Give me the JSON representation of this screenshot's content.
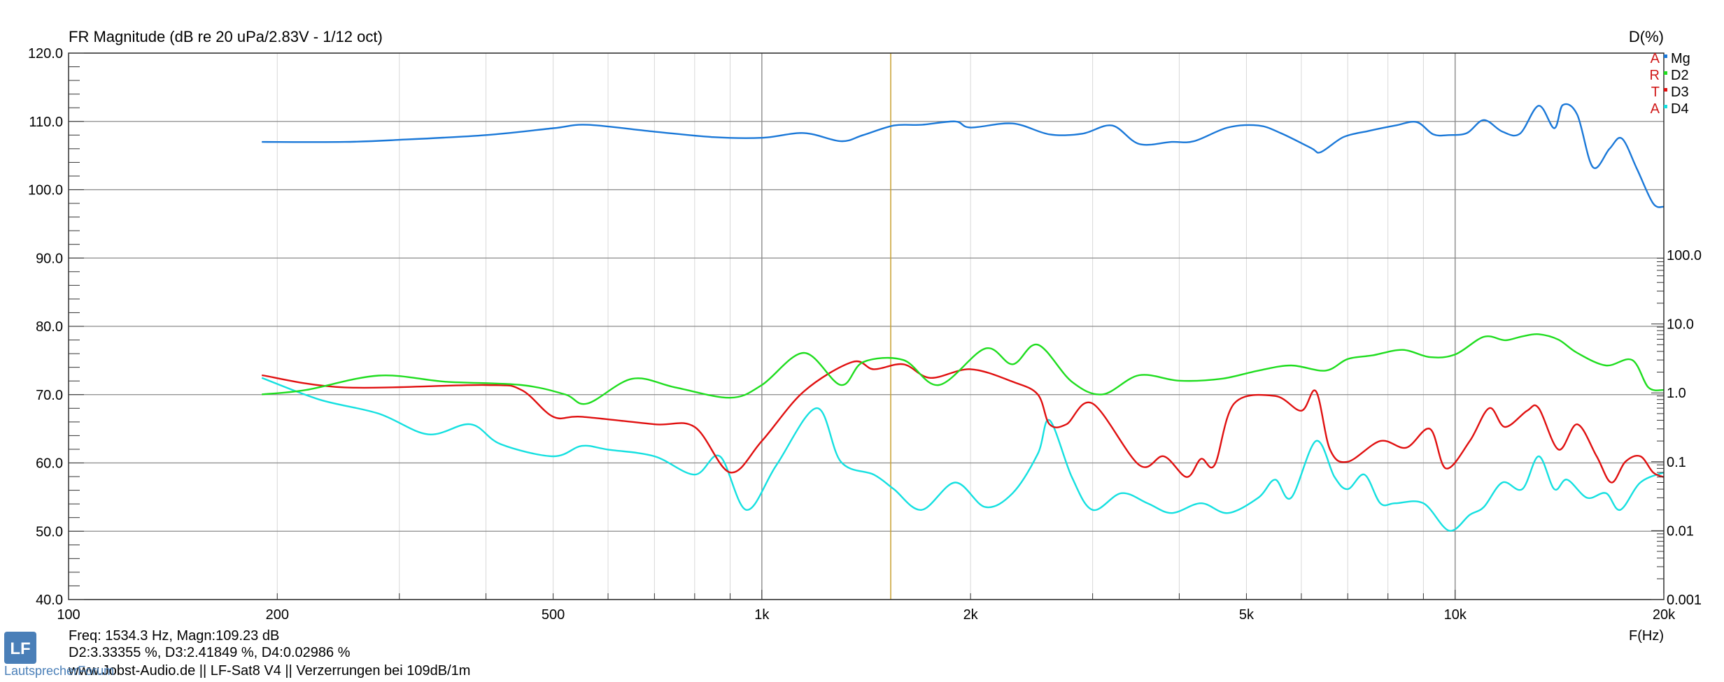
{
  "chart_data": {
    "type": "line",
    "title": "FR Magnitude (dB re 20 uPa/2.83V - 1/12 oct)",
    "right_axis_title": "D(%)",
    "xlabel": "F(Hz)",
    "x_scale": "log",
    "xlim": [
      100,
      20000
    ],
    "x_ticks": [
      {
        "value": 100,
        "label": "100"
      },
      {
        "value": 200,
        "label": "200"
      },
      {
        "value": 500,
        "label": "500"
      },
      {
        "value": 1000,
        "label": "1k"
      },
      {
        "value": 2000,
        "label": "2k"
      },
      {
        "value": 5000,
        "label": "5k"
      },
      {
        "value": 10000,
        "label": "10k"
      },
      {
        "value": 20000,
        "label": "20k"
      }
    ],
    "ylim": [
      40,
      120
    ],
    "y_ticks": [
      "40.0",
      "50.0",
      "60.0",
      "70.0",
      "80.0",
      "90.0",
      "100.0",
      "110.0",
      "120.0"
    ],
    "y2_scale": "log",
    "y2lim": [
      0.001,
      100
    ],
    "y2_ticks": [
      {
        "value": 100,
        "label": "100.0"
      },
      {
        "value": 10,
        "label": "10.0"
      },
      {
        "value": 1,
        "label": "1.0"
      },
      {
        "value": 0.1,
        "label": "0.1"
      },
      {
        "value": 0.01,
        "label": "0.01"
      },
      {
        "value": 0.001,
        "label": "0.001"
      }
    ],
    "grid": true,
    "legend_placement": "top-right",
    "arta_letters": [
      "A",
      "R",
      "T",
      "A"
    ],
    "cursor_freq": 1534.3,
    "series": [
      {
        "name": "Mg",
        "axis": "left",
        "color": "#1a78d8",
        "x": [
          190,
          250,
          300,
          400,
          500,
          560,
          700,
          850,
          1000,
          1150,
          1300,
          1400,
          1550,
          1700,
          1900,
          2000,
          2300,
          2600,
          2900,
          3200,
          3500,
          3900,
          4200,
          4700,
          5200,
          5600,
          6200,
          6400,
          6900,
          7500,
          8200,
          8800,
          9300,
          9800,
          10400,
          11000,
          11700,
          12400,
          13200,
          13900,
          14300,
          15000,
          15800,
          16700,
          17400,
          18300,
          19300,
          20000
        ],
        "y": [
          107,
          107,
          107.3,
          108,
          109,
          109.5,
          108.5,
          107.7,
          107.6,
          108.3,
          107.1,
          108,
          109.4,
          109.5,
          110,
          109.1,
          109.7,
          108.1,
          108.2,
          109.4,
          106.7,
          107,
          107.1,
          109.1,
          109.4,
          108.3,
          106.1,
          105.5,
          107.7,
          108.6,
          109.4,
          109.9,
          108.1,
          108,
          108.3,
          110.2,
          108.5,
          108.2,
          112.3,
          109,
          112.4,
          111,
          103.3,
          106,
          107.5,
          103,
          98,
          97.5
        ]
      },
      {
        "name": "D2",
        "axis": "right",
        "color": "#1fdd1f",
        "x": [
          190,
          220,
          280,
          350,
          450,
          520,
          560,
          650,
          750,
          900,
          1000,
          1150,
          1300,
          1400,
          1600,
          1800,
          2100,
          2300,
          2500,
          2800,
          3100,
          3500,
          4000,
          4600,
          5200,
          5800,
          6500,
          7000,
          7600,
          8400,
          9200,
          10000,
          11000,
          11800,
          12500,
          13200,
          14100,
          15000,
          16500,
          18000,
          19000,
          20000
        ],
        "y": [
          0.95,
          1.1,
          1.78,
          1.45,
          1.3,
          0.95,
          0.7,
          1.6,
          1.2,
          0.85,
          1.3,
          3.8,
          1.3,
          2.8,
          3.0,
          1.3,
          4.4,
          2.6,
          5.0,
          1.45,
          0.95,
          1.8,
          1.5,
          1.6,
          2.1,
          2.5,
          2.1,
          3.1,
          3.5,
          4.2,
          3.3,
          3.6,
          6.5,
          5.8,
          6.6,
          7.1,
          5.9,
          3.8,
          2.5,
          3.0,
          1.2,
          1.1
        ]
      },
      {
        "name": "D3",
        "axis": "right",
        "color": "#e01010",
        "x": [
          190,
          250,
          400,
          450,
          500,
          550,
          700,
          800,
          900,
          1000,
          1150,
          1350,
          1450,
          1600,
          1750,
          2000,
          2300,
          2500,
          2600,
          2750,
          3000,
          3500,
          3800,
          4100,
          4300,
          4500,
          4800,
          5500,
          6000,
          6300,
          6600,
          7000,
          7800,
          8500,
          9200,
          9700,
          10500,
          11200,
          11800,
          12700,
          13200,
          14100,
          15000,
          16000,
          16800,
          17600,
          18500,
          19300,
          20000
        ],
        "y": [
          1.8,
          1.2,
          1.3,
          1.1,
          0.45,
          0.45,
          0.35,
          0.32,
          0.07,
          0.2,
          1.05,
          2.8,
          2.2,
          2.6,
          1.65,
          2.2,
          1.45,
          0.95,
          0.35,
          0.35,
          0.7,
          0.09,
          0.12,
          0.06,
          0.11,
          0.09,
          0.7,
          0.9,
          0.55,
          1.05,
          0.15,
          0.1,
          0.2,
          0.16,
          0.3,
          0.08,
          0.2,
          0.6,
          0.32,
          0.55,
          0.6,
          0.15,
          0.35,
          0.12,
          0.05,
          0.1,
          0.12,
          0.07,
          0.06
        ]
      },
      {
        "name": "D4",
        "axis": "right",
        "color": "#15e0e0",
        "x": [
          190,
          230,
          280,
          330,
          380,
          420,
          500,
          550,
          600,
          700,
          800,
          870,
          950,
          1050,
          1200,
          1300,
          1450,
          1550,
          1700,
          1900,
          2100,
          2300,
          2500,
          2600,
          2800,
          3000,
          3300,
          3600,
          3900,
          4300,
          4700,
          5200,
          5500,
          5800,
          6300,
          6700,
          7000,
          7400,
          7800,
          8200,
          9000,
          9800,
          10500,
          11000,
          11700,
          12500,
          13200,
          13900,
          14500,
          15500,
          16500,
          17300,
          18500,
          20000
        ],
        "y": [
          1.65,
          0.8,
          0.5,
          0.25,
          0.35,
          0.18,
          0.12,
          0.17,
          0.15,
          0.12,
          0.065,
          0.12,
          0.02,
          0.09,
          0.6,
          0.1,
          0.065,
          0.04,
          0.02,
          0.05,
          0.022,
          0.035,
          0.13,
          0.4,
          0.06,
          0.02,
          0.035,
          0.025,
          0.018,
          0.025,
          0.018,
          0.03,
          0.055,
          0.03,
          0.2,
          0.06,
          0.04,
          0.065,
          0.025,
          0.025,
          0.025,
          0.01,
          0.017,
          0.022,
          0.05,
          0.04,
          0.12,
          0.04,
          0.055,
          0.03,
          0.035,
          0.02,
          0.05,
          0.07
        ]
      }
    ]
  },
  "footer": {
    "readout_line1": "Freq: 1534.3 Hz, Magn:109.23 dB",
    "readout_line2": "D2:3.33355 %, D3:2.41849 %, D4:0.02986 %",
    "caption": "www.Jobst-Audio.de  ||  LF-Sat8 V4  ||  Verzerrungen bei 109dB/1m",
    "logo_text": "LautsprecherForum",
    "logo_letters": "LF"
  },
  "colors": {
    "grid_major": "#8a8a8a",
    "grid_minor": "#d8d8d8",
    "cursor": "#c8a030"
  }
}
